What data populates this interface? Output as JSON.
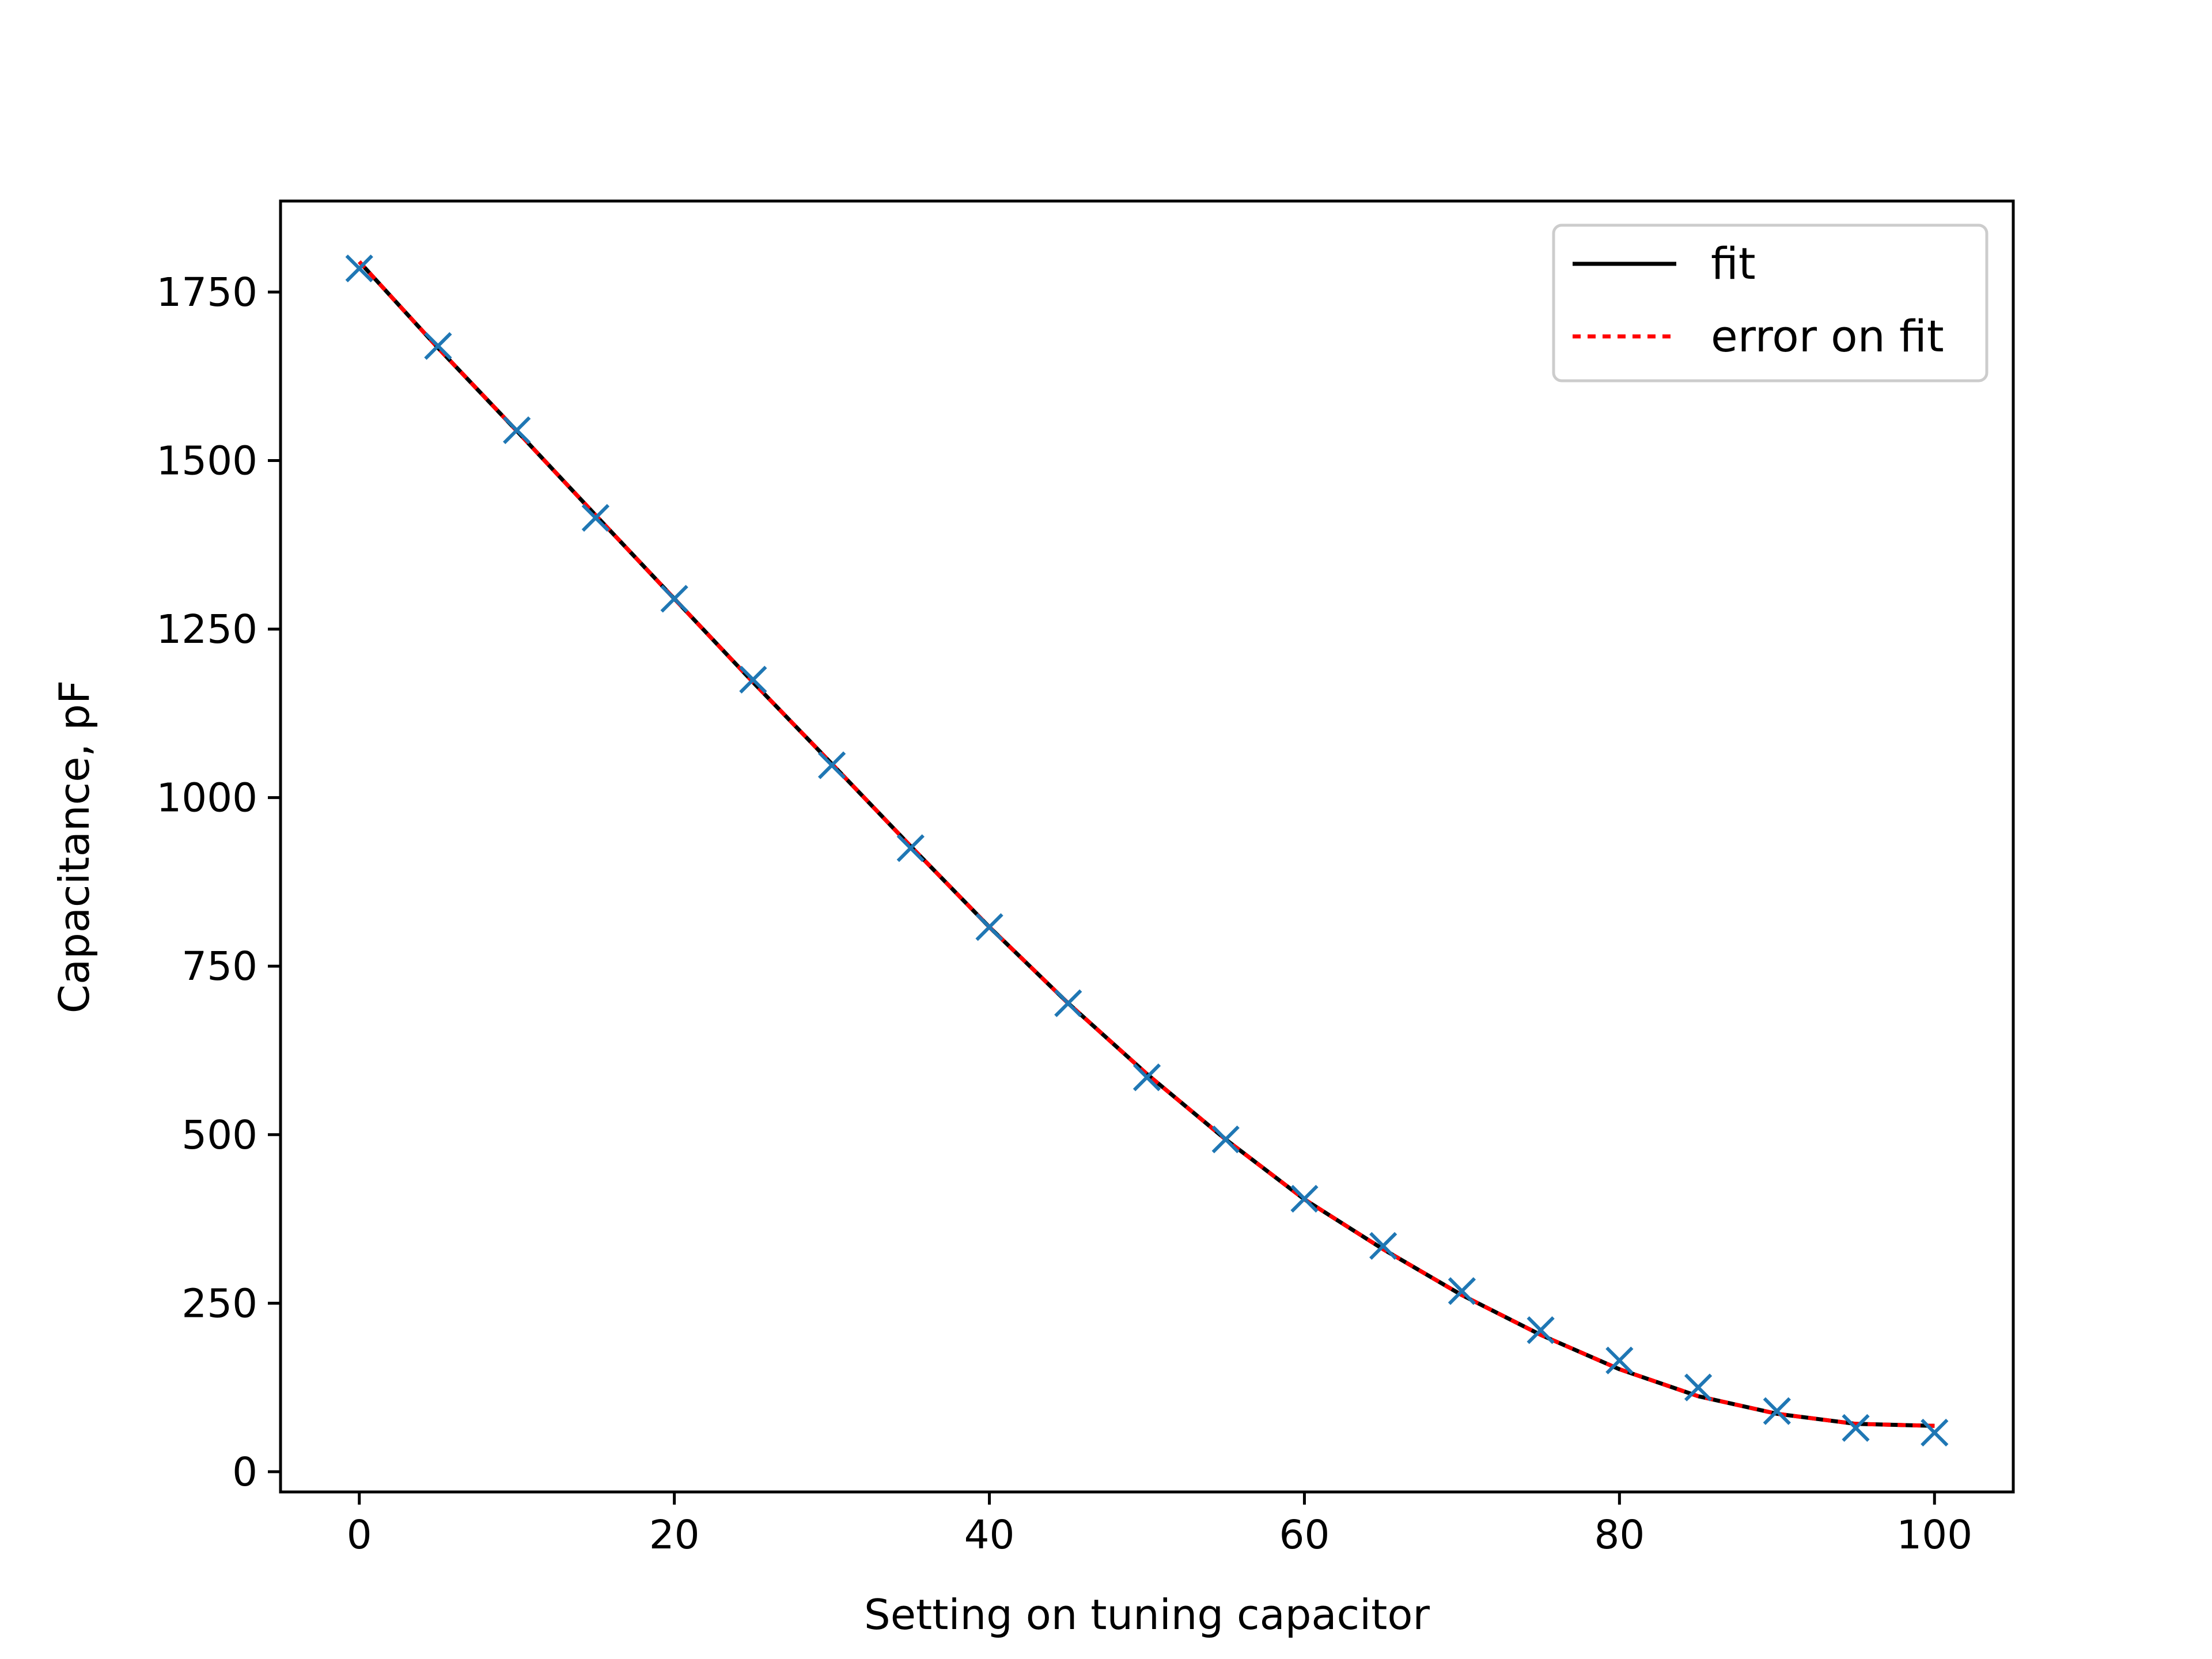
{
  "chart_data": {
    "type": "line",
    "title": "",
    "xlabel": "Setting on tuning capacitor",
    "ylabel": "Capacitance, pF",
    "xlim": [
      -5,
      105
    ],
    "ylim": [
      -30,
      1885
    ],
    "xticks": [
      0,
      20,
      40,
      60,
      80,
      100
    ],
    "yticks": [
      0,
      250,
      500,
      750,
      1000,
      1250,
      1500,
      1750
    ],
    "grid": false,
    "legend_position": "top-right",
    "series": [
      {
        "name": "fit",
        "kind": "line",
        "style": "solid",
        "color": "#000000",
        "x": [
          0,
          5,
          10,
          15,
          20,
          25,
          30,
          35,
          40,
          45,
          50,
          55,
          60,
          65,
          70,
          75,
          80,
          85,
          90,
          95,
          100
        ],
        "y": [
          1795,
          1667,
          1544,
          1419,
          1295,
          1171,
          1050,
          928,
          808,
          695,
          590,
          493,
          404,
          330,
          262,
          203,
          152,
          112,
          86,
          71,
          68
        ]
      },
      {
        "name": "error on fit",
        "kind": "line",
        "style": "dotted",
        "color": "#ff0000",
        "x": [
          0,
          5,
          10,
          15,
          20,
          25,
          30,
          35,
          40,
          45,
          50,
          55,
          60,
          65,
          70,
          75,
          80,
          85,
          90,
          95,
          100
        ],
        "y": [
          1795,
          1667,
          1544,
          1419,
          1295,
          1171,
          1050,
          928,
          808,
          695,
          590,
          493,
          404,
          330,
          262,
          203,
          152,
          112,
          86,
          71,
          68
        ]
      },
      {
        "name": "",
        "kind": "scatter",
        "marker": "x",
        "color": "#1f77b4",
        "x": [
          0,
          5,
          10,
          15,
          20,
          25,
          30,
          35,
          40,
          45,
          50,
          55,
          60,
          65,
          70,
          75,
          80,
          85,
          90,
          95,
          100
        ],
        "y": [
          1785,
          1670,
          1545,
          1415,
          1295,
          1175,
          1048,
          925,
          808,
          695,
          585,
          493,
          405,
          335,
          268,
          210,
          165,
          125,
          90,
          65,
          58
        ]
      }
    ]
  }
}
